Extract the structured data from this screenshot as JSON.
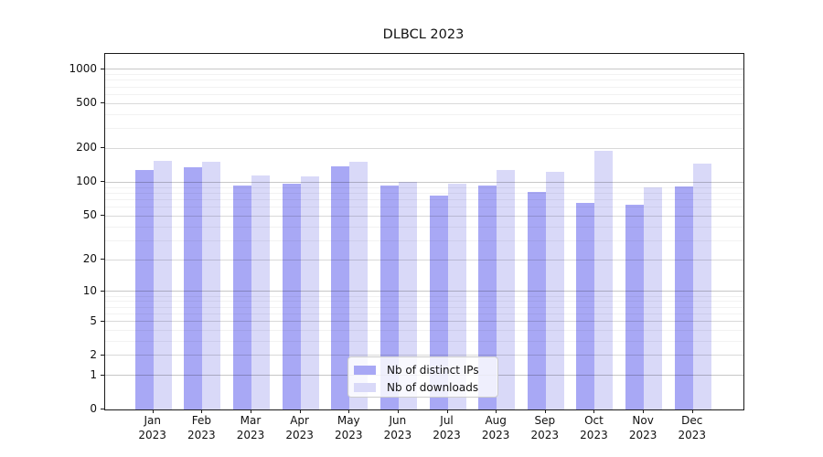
{
  "chart_data": {
    "type": "bar",
    "title": "DLBCL 2023",
    "categories": [
      "Jan 2023",
      "Feb 2023",
      "Mar 2023",
      "Apr 2023",
      "May 2023",
      "Jun 2023",
      "Jul 2023",
      "Aug 2023",
      "Sep 2023",
      "Oct 2023",
      "Nov 2023",
      "Dec 2023"
    ],
    "series": [
      {
        "name": "Nb of distinct IPs",
        "color": "#a8a8f5",
        "values": [
          130,
          135,
          94,
          97,
          140,
          93,
          76,
          94,
          82,
          65,
          63,
          92
        ]
      },
      {
        "name": "Nb of downloads",
        "color": "#d9d9f8",
        "values": [
          156,
          152,
          116,
          114,
          153,
          101,
          97,
          128,
          125,
          190,
          90,
          147
        ]
      }
    ],
    "xlabel": "",
    "ylabel": "",
    "yscale": "log1p",
    "yticks": [
      0,
      1,
      2,
      5,
      10,
      20,
      50,
      100,
      200,
      500,
      1000
    ],
    "ylim": [
      0,
      1370
    ],
    "grid": "horizontal major and minor",
    "legend_position": "bottom-center-inside"
  }
}
